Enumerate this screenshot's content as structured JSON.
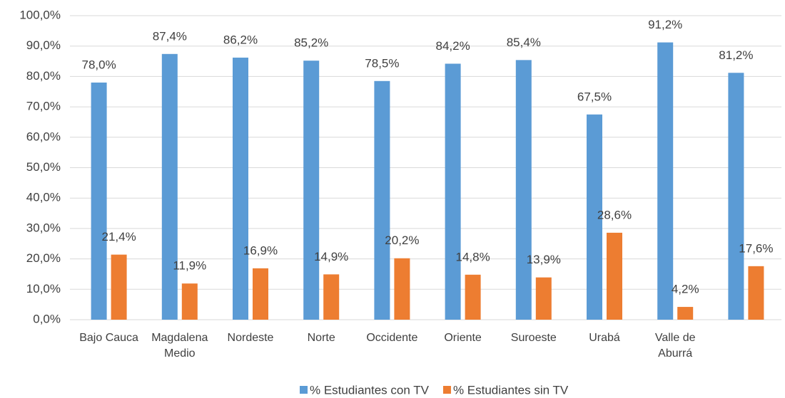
{
  "chart_data": {
    "type": "bar",
    "categories": [
      "Bajo Cauca",
      "Magdalena Medio",
      "Nordeste",
      "Norte",
      "Occidente",
      "Oriente",
      "Suroeste",
      "Urabá",
      "Valle de Aburrá",
      null
    ],
    "series": [
      {
        "name": "% Estudiantes con TV",
        "color": "#5b9bd5",
        "values": [
          78.0,
          87.4,
          86.2,
          85.2,
          78.5,
          84.2,
          85.4,
          67.5,
          91.2,
          81.2
        ],
        "value_labels": [
          "78,0%",
          "87,4%",
          "86,2%",
          "85,2%",
          "78,5%",
          "84,2%",
          "85,4%",
          "67,5%",
          "91,2%",
          "81,2%"
        ]
      },
      {
        "name": "% Estudiantes sin TV",
        "color": "#ed7d31",
        "values": [
          21.4,
          11.9,
          16.9,
          14.9,
          20.2,
          14.8,
          13.9,
          28.6,
          4.2,
          17.6
        ],
        "value_labels": [
          "21,4%",
          "11,9%",
          "16,9%",
          "14,9%",
          "20,2%",
          "14,8%",
          "13,9%",
          "28,6%",
          "4,2%",
          "17,6%"
        ]
      }
    ],
    "ylim": [
      0,
      100
    ],
    "yticks": [
      {
        "value": 0,
        "label": "0,0%"
      },
      {
        "value": 10,
        "label": "10,0%"
      },
      {
        "value": 20,
        "label": "20,0%"
      },
      {
        "value": 30,
        "label": "30,0%"
      },
      {
        "value": 40,
        "label": "40,0%"
      },
      {
        "value": 50,
        "label": "50,0%"
      },
      {
        "value": 60,
        "label": "60,0%"
      },
      {
        "value": 70,
        "label": "70,0%"
      },
      {
        "value": 80,
        "label": "80,0%"
      },
      {
        "value": 90,
        "label": "90,0%"
      },
      {
        "value": 100,
        "label": "100,0%"
      }
    ],
    "grid": true,
    "legend": "bottom"
  }
}
